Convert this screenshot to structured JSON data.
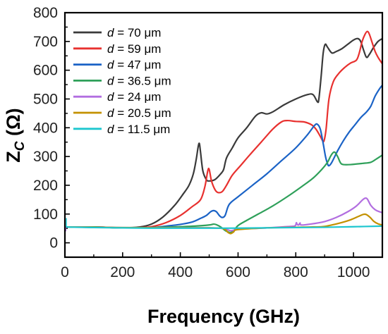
{
  "chart_data": {
    "type": "line",
    "xlabel": "Frequency (GHz)",
    "ylabel_main": "Z",
    "ylabel_sub": "C",
    "ylabel_unit": " (Ω)",
    "xlim": [
      0,
      1100
    ],
    "ylim": [
      -50,
      800
    ],
    "xticks": [
      0,
      200,
      400,
      600,
      800,
      1000
    ],
    "yticks": [
      0,
      100,
      200,
      300,
      400,
      500,
      600,
      700,
      800
    ],
    "legend_position": "top-left",
    "legend_prefix": "d",
    "legend_eq": " = ",
    "series": [
      {
        "name": "70 μm",
        "color": "#3a3a3a",
        "points": [
          [
            0,
            55
          ],
          [
            20,
            55
          ],
          [
            100,
            55
          ],
          [
            200,
            52
          ],
          [
            260,
            55
          ],
          [
            300,
            65
          ],
          [
            340,
            90
          ],
          [
            380,
            130
          ],
          [
            410,
            170
          ],
          [
            430,
            200
          ],
          [
            445,
            240
          ],
          [
            455,
            290
          ],
          [
            462,
            335
          ],
          [
            466,
            345
          ],
          [
            470,
            315
          ],
          [
            478,
            250
          ],
          [
            490,
            220
          ],
          [
            500,
            215
          ],
          [
            520,
            220
          ],
          [
            540,
            240
          ],
          [
            550,
            255
          ],
          [
            560,
            295
          ],
          [
            580,
            330
          ],
          [
            600,
            365
          ],
          [
            630,
            400
          ],
          [
            660,
            440
          ],
          [
            680,
            452
          ],
          [
            700,
            448
          ],
          [
            720,
            455
          ],
          [
            760,
            480
          ],
          [
            800,
            500
          ],
          [
            840,
            515
          ],
          [
            860,
            515
          ],
          [
            875,
            490
          ],
          [
            880,
            500
          ],
          [
            888,
            580
          ],
          [
            895,
            660
          ],
          [
            902,
            690
          ],
          [
            910,
            680
          ],
          [
            925,
            660
          ],
          [
            940,
            665
          ],
          [
            960,
            675
          ],
          [
            980,
            690
          ],
          [
            1000,
            705
          ],
          [
            1015,
            710
          ],
          [
            1025,
            700
          ],
          [
            1035,
            670
          ],
          [
            1045,
            645
          ],
          [
            1055,
            655
          ],
          [
            1070,
            680
          ],
          [
            1085,
            700
          ],
          [
            1100,
            710
          ]
        ]
      },
      {
        "name": "59 μm",
        "color": "#e8312f",
        "points": [
          [
            0,
            55
          ],
          [
            100,
            55
          ],
          [
            200,
            52
          ],
          [
            260,
            53
          ],
          [
            300,
            56
          ],
          [
            350,
            70
          ],
          [
            400,
            95
          ],
          [
            440,
            125
          ],
          [
            470,
            150
          ],
          [
            485,
            195
          ],
          [
            495,
            250
          ],
          [
            500,
            255
          ],
          [
            508,
            215
          ],
          [
            520,
            185
          ],
          [
            530,
            175
          ],
          [
            545,
            178
          ],
          [
            560,
            200
          ],
          [
            580,
            235
          ],
          [
            610,
            270
          ],
          [
            640,
            305
          ],
          [
            680,
            350
          ],
          [
            720,
            395
          ],
          [
            750,
            420
          ],
          [
            770,
            425
          ],
          [
            800,
            422
          ],
          [
            830,
            420
          ],
          [
            855,
            410
          ],
          [
            870,
            395
          ],
          [
            885,
            370
          ],
          [
            893,
            355
          ],
          [
            898,
            355
          ],
          [
            905,
            395
          ],
          [
            915,
            500
          ],
          [
            930,
            560
          ],
          [
            950,
            590
          ],
          [
            970,
            610
          ],
          [
            990,
            625
          ],
          [
            1010,
            635
          ],
          [
            1020,
            660
          ],
          [
            1030,
            700
          ],
          [
            1040,
            725
          ],
          [
            1048,
            735
          ],
          [
            1055,
            725
          ],
          [
            1065,
            695
          ],
          [
            1075,
            665
          ],
          [
            1085,
            645
          ],
          [
            1100,
            622
          ]
        ]
      },
      {
        "name": "47 μm",
        "color": "#1b63c6",
        "points": [
          [
            0,
            55
          ],
          [
            100,
            55
          ],
          [
            200,
            52
          ],
          [
            300,
            53
          ],
          [
            350,
            58
          ],
          [
            400,
            64
          ],
          [
            440,
            72
          ],
          [
            470,
            85
          ],
          [
            490,
            95
          ],
          [
            505,
            108
          ],
          [
            515,
            112
          ],
          [
            525,
            108
          ],
          [
            535,
            95
          ],
          [
            545,
            88
          ],
          [
            555,
            95
          ],
          [
            565,
            125
          ],
          [
            575,
            140
          ],
          [
            600,
            160
          ],
          [
            650,
            200
          ],
          [
            700,
            240
          ],
          [
            750,
            285
          ],
          [
            800,
            330
          ],
          [
            840,
            375
          ],
          [
            865,
            408
          ],
          [
            875,
            412
          ],
          [
            885,
            395
          ],
          [
            895,
            345
          ],
          [
            903,
            300
          ],
          [
            910,
            275
          ],
          [
            915,
            268
          ],
          [
            925,
            280
          ],
          [
            945,
            320
          ],
          [
            965,
            355
          ],
          [
            985,
            385
          ],
          [
            1005,
            410
          ],
          [
            1025,
            435
          ],
          [
            1045,
            455
          ],
          [
            1060,
            475
          ],
          [
            1075,
            510
          ],
          [
            1090,
            535
          ],
          [
            1100,
            548
          ]
        ]
      },
      {
        "name": "36.5 μm",
        "color": "#2fa05a",
        "points": [
          [
            0,
            55
          ],
          [
            100,
            55
          ],
          [
            200,
            52
          ],
          [
            300,
            53
          ],
          [
            400,
            56
          ],
          [
            450,
            58
          ],
          [
            500,
            62
          ],
          [
            515,
            65
          ],
          [
            525,
            63
          ],
          [
            540,
            55
          ],
          [
            555,
            43
          ],
          [
            565,
            38
          ],
          [
            575,
            36
          ],
          [
            585,
            42
          ],
          [
            600,
            60
          ],
          [
            630,
            78
          ],
          [
            670,
            100
          ],
          [
            720,
            128
          ],
          [
            770,
            160
          ],
          [
            820,
            195
          ],
          [
            860,
            225
          ],
          [
            890,
            255
          ],
          [
            910,
            280
          ],
          [
            920,
            300
          ],
          [
            928,
            312
          ],
          [
            935,
            315
          ],
          [
            945,
            300
          ],
          [
            955,
            278
          ],
          [
            965,
            272
          ],
          [
            990,
            272
          ],
          [
            1030,
            276
          ],
          [
            1060,
            280
          ],
          [
            1080,
            292
          ],
          [
            1100,
            305
          ]
        ]
      },
      {
        "name": "24 μm",
        "color": "#b26ee0",
        "points": [
          [
            0,
            55
          ],
          [
            200,
            53
          ],
          [
            400,
            52
          ],
          [
            500,
            52
          ],
          [
            550,
            50
          ],
          [
            565,
            45
          ],
          [
            575,
            42
          ],
          [
            590,
            45
          ],
          [
            610,
            48
          ],
          [
            700,
            52
          ],
          [
            780,
            57
          ],
          [
            795,
            58
          ],
          [
            800,
            62
          ],
          [
            802,
            70
          ],
          [
            805,
            64
          ],
          [
            810,
            62
          ],
          [
            815,
            69
          ],
          [
            818,
            62
          ],
          [
            850,
            65
          ],
          [
            900,
            74
          ],
          [
            940,
            88
          ],
          [
            980,
            108
          ],
          [
            1010,
            128
          ],
          [
            1030,
            148
          ],
          [
            1040,
            155
          ],
          [
            1048,
            152
          ],
          [
            1060,
            130
          ],
          [
            1075,
            115
          ],
          [
            1090,
            108
          ],
          [
            1100,
            105
          ]
        ]
      },
      {
        "name": "20.5 μm",
        "color": "#c39100",
        "points": [
          [
            0,
            55
          ],
          [
            200,
            53
          ],
          [
            400,
            52
          ],
          [
            500,
            52
          ],
          [
            550,
            49
          ],
          [
            565,
            36
          ],
          [
            575,
            32
          ],
          [
            585,
            38
          ],
          [
            600,
            46
          ],
          [
            700,
            52
          ],
          [
            800,
            54
          ],
          [
            860,
            55
          ],
          [
            900,
            57
          ],
          [
            950,
            68
          ],
          [
            990,
            80
          ],
          [
            1020,
            93
          ],
          [
            1035,
            99
          ],
          [
            1045,
            98
          ],
          [
            1058,
            88
          ],
          [
            1070,
            75
          ],
          [
            1085,
            66
          ],
          [
            1100,
            62
          ]
        ]
      },
      {
        "name": "11.5 μm",
        "color": "#1cc6cf",
        "points": [
          [
            0,
            55
          ],
          [
            100,
            53
          ],
          [
            200,
            52
          ],
          [
            300,
            51
          ],
          [
            400,
            51
          ],
          [
            500,
            51
          ],
          [
            600,
            51
          ],
          [
            700,
            52
          ],
          [
            800,
            53
          ],
          [
            900,
            54
          ],
          [
            1000,
            56
          ],
          [
            1100,
            58
          ]
        ]
      }
    ]
  }
}
